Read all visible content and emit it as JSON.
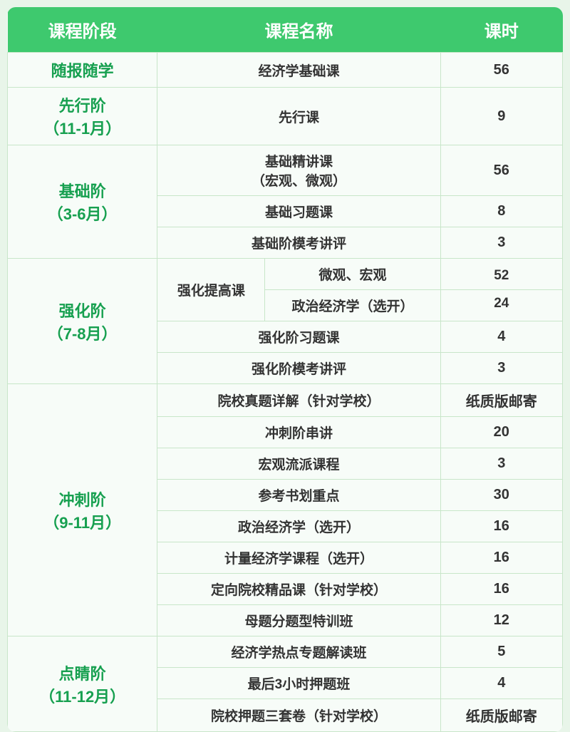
{
  "colors": {
    "header_bg": "#3ec96e",
    "header_text": "#ffffff",
    "stage_text": "#17a050",
    "cell_text": "#333333",
    "border": "#c8e6c9",
    "body_bg": "#e8f5e9",
    "cell_bg": "#f7fcf8"
  },
  "columns": [
    "课程阶段",
    "课程名称",
    "课时"
  ],
  "stages": [
    {
      "title": "随报随学",
      "sub": "",
      "rows": [
        {
          "name": "经济学基础课",
          "hours": "56"
        }
      ]
    },
    {
      "title": "先行阶",
      "sub": "（11-1月）",
      "rows": [
        {
          "name": "先行课",
          "hours": "9"
        }
      ]
    },
    {
      "title": "基础阶",
      "sub": "（3-6月）",
      "rows": [
        {
          "name": "基础精讲课<br>（宏观、微观）",
          "hours": "56"
        },
        {
          "name": "基础习题课",
          "hours": "8"
        },
        {
          "name": "基础阶模考讲评",
          "hours": "3"
        }
      ]
    },
    {
      "title": "强化阶",
      "sub": "（7-8月）",
      "split_label": "强化提高课",
      "split": [
        {
          "name": "微观、宏观",
          "hours": "52"
        },
        {
          "name": "政治经济学（选开）",
          "hours": "24"
        }
      ],
      "rows": [
        {
          "name": "强化阶习题课",
          "hours": "4"
        },
        {
          "name": "强化阶模考讲评",
          "hours": "3"
        }
      ]
    },
    {
      "title": "冲刺阶",
      "sub": "（9-11月）",
      "rows": [
        {
          "name": "院校真题详解（针对学校）",
          "hours": "纸质版邮寄"
        },
        {
          "name": "冲刺阶串讲",
          "hours": "20"
        },
        {
          "name": "宏观流派课程",
          "hours": "3"
        },
        {
          "name": "参考书划重点",
          "hours": "30"
        },
        {
          "name": "政治经济学（选开）",
          "hours": "16"
        },
        {
          "name": "计量经济学课程（选开）",
          "hours": "16"
        },
        {
          "name": "定向院校精品课（针对学校）",
          "hours": "16"
        },
        {
          "name": "母题分题型特训班",
          "hours": "12"
        }
      ]
    },
    {
      "title": "点睛阶",
      "sub": "（11-12月）",
      "rows": [
        {
          "name": "经济学热点专题解读班",
          "hours": "5"
        },
        {
          "name": "最后3小时押题班",
          "hours": "4"
        },
        {
          "name": "院校押题三套卷（针对学校）",
          "hours": "纸质版邮寄"
        }
      ]
    }
  ]
}
